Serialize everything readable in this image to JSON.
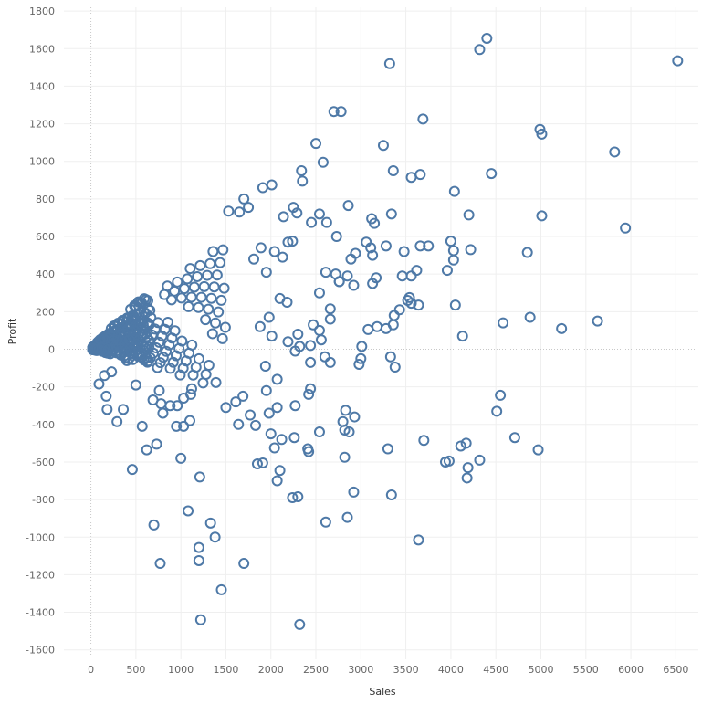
{
  "chart_data": {
    "type": "scatter",
    "title": "",
    "xlabel": "Sales",
    "ylabel": "Profit",
    "xlim": [
      -300,
      6750
    ],
    "ylim": [
      -1650,
      1820
    ],
    "x_ticks": [
      0,
      500,
      1000,
      1500,
      2000,
      2500,
      3000,
      3500,
      4000,
      4500,
      5000,
      5500,
      6000,
      6500
    ],
    "y_ticks": [
      -1600,
      -1400,
      -1200,
      -1000,
      -800,
      -600,
      -400,
      -200,
      0,
      200,
      400,
      600,
      800,
      1000,
      1200,
      1400,
      1600,
      1800
    ],
    "grid": true,
    "marker": "hollow-circle",
    "color": "#4e79a7",
    "series": [
      {
        "points": [
          [
            6520,
            1535
          ],
          [
            4400,
            1655
          ],
          [
            4320,
            1595
          ],
          [
            3320,
            1520
          ],
          [
            2700,
            1265
          ],
          [
            2780,
            1265
          ],
          [
            3690,
            1225
          ],
          [
            4990,
            1170
          ],
          [
            5010,
            1145
          ],
          [
            2500,
            1095
          ],
          [
            3250,
            1085
          ],
          [
            5820,
            1050
          ],
          [
            2580,
            995
          ],
          [
            3360,
            950
          ],
          [
            3560,
            915
          ],
          [
            3660,
            930
          ],
          [
            4450,
            935
          ],
          [
            2340,
            950
          ],
          [
            2350,
            895
          ],
          [
            1910,
            860
          ],
          [
            2010,
            875
          ],
          [
            1700,
            800
          ],
          [
            4040,
            840
          ],
          [
            2250,
            755
          ],
          [
            2140,
            705
          ],
          [
            2450,
            675
          ],
          [
            2540,
            720
          ],
          [
            2620,
            675
          ],
          [
            2860,
            765
          ],
          [
            2290,
            725
          ],
          [
            1530,
            735
          ],
          [
            1650,
            730
          ],
          [
            1750,
            755
          ],
          [
            3120,
            695
          ],
          [
            3150,
            670
          ],
          [
            3340,
            720
          ],
          [
            5010,
            710
          ],
          [
            4200,
            715
          ],
          [
            5940,
            645
          ],
          [
            4850,
            515
          ],
          [
            3660,
            550
          ],
          [
            3750,
            550
          ],
          [
            3480,
            520
          ],
          [
            4000,
            575
          ],
          [
            4030,
            525
          ],
          [
            4030,
            475
          ],
          [
            3960,
            420
          ],
          [
            4220,
            530
          ],
          [
            3060,
            570
          ],
          [
            3110,
            540
          ],
          [
            3280,
            550
          ],
          [
            3130,
            500
          ],
          [
            2940,
            510
          ],
          [
            2890,
            480
          ],
          [
            2730,
            600
          ],
          [
            2850,
            390
          ],
          [
            2760,
            360
          ],
          [
            2920,
            340
          ],
          [
            2540,
            300
          ],
          [
            2610,
            410
          ],
          [
            2720,
            400
          ],
          [
            3170,
            380
          ],
          [
            3130,
            350
          ],
          [
            3460,
            390
          ],
          [
            3560,
            390
          ],
          [
            3620,
            420
          ],
          [
            3520,
            260
          ],
          [
            3540,
            275
          ],
          [
            3430,
            210
          ],
          [
            3370,
            180
          ],
          [
            3360,
            130
          ],
          [
            3280,
            110
          ],
          [
            3180,
            120
          ],
          [
            3080,
            105
          ],
          [
            3560,
            245
          ],
          [
            3640,
            235
          ],
          [
            4050,
            235
          ],
          [
            4130,
            70
          ],
          [
            4580,
            140
          ],
          [
            4880,
            170
          ],
          [
            5230,
            110
          ],
          [
            5630,
            150
          ],
          [
            2470,
            130
          ],
          [
            2540,
            100
          ],
          [
            2660,
            160
          ],
          [
            2560,
            50
          ],
          [
            2440,
            20
          ],
          [
            2660,
            215
          ],
          [
            2760,
            360
          ],
          [
            2320,
            15
          ],
          [
            2190,
            570
          ],
          [
            2240,
            575
          ],
          [
            2040,
            520
          ],
          [
            2130,
            490
          ],
          [
            1890,
            540
          ],
          [
            1810,
            480
          ],
          [
            1950,
            410
          ],
          [
            2100,
            270
          ],
          [
            2180,
            250
          ],
          [
            1980,
            170
          ],
          [
            1880,
            120
          ],
          [
            2010,
            70
          ],
          [
            2190,
            40
          ],
          [
            2270,
            -10
          ],
          [
            2300,
            80
          ],
          [
            1940,
            -90
          ],
          [
            2070,
            -160
          ],
          [
            2440,
            -70
          ],
          [
            2600,
            -40
          ],
          [
            2660,
            -70
          ],
          [
            2980,
            -80
          ],
          [
            3000,
            -50
          ],
          [
            3010,
            15
          ],
          [
            3330,
            -40
          ],
          [
            3380,
            -95
          ],
          [
            2440,
            -210
          ],
          [
            2420,
            -240
          ],
          [
            2270,
            -300
          ],
          [
            2070,
            -310
          ],
          [
            1980,
            -340
          ],
          [
            2000,
            -450
          ],
          [
            2260,
            -470
          ],
          [
            2540,
            -440
          ],
          [
            2410,
            -530
          ],
          [
            2420,
            -545
          ],
          [
            2040,
            -525
          ],
          [
            2120,
            -480
          ],
          [
            1910,
            -605
          ],
          [
            2100,
            -645
          ],
          [
            2070,
            -700
          ],
          [
            2240,
            -790
          ],
          [
            2300,
            -785
          ],
          [
            2610,
            -920
          ],
          [
            2850,
            -895
          ],
          [
            2920,
            -760
          ],
          [
            2820,
            -575
          ],
          [
            2820,
            -430
          ],
          [
            2870,
            -440
          ],
          [
            2800,
            -385
          ],
          [
            2930,
            -360
          ],
          [
            2830,
            -325
          ],
          [
            3300,
            -530
          ],
          [
            3340,
            -775
          ],
          [
            3640,
            -1015
          ],
          [
            3700,
            -485
          ],
          [
            3940,
            -600
          ],
          [
            3980,
            -595
          ],
          [
            4110,
            -515
          ],
          [
            4170,
            -500
          ],
          [
            4190,
            -630
          ],
          [
            4180,
            -685
          ],
          [
            4320,
            -590
          ],
          [
            4510,
            -330
          ],
          [
            4550,
            -245
          ],
          [
            4710,
            -470
          ],
          [
            4970,
            -535
          ],
          [
            2320,
            -1465
          ],
          [
            1450,
            -1280
          ],
          [
            1220,
            -1440
          ],
          [
            1200,
            -1055
          ],
          [
            1200,
            -1125
          ],
          [
            1380,
            -1000
          ],
          [
            1700,
            -1140
          ],
          [
            1080,
            -860
          ],
          [
            1330,
            -925
          ],
          [
            700,
            -935
          ],
          [
            770,
            -1140
          ],
          [
            1210,
            -680
          ],
          [
            1000,
            -580
          ],
          [
            730,
            -505
          ],
          [
            620,
            -535
          ],
          [
            1830,
            -405
          ],
          [
            1640,
            -400
          ],
          [
            1500,
            -310
          ],
          [
            1610,
            -280
          ],
          [
            1850,
            -610
          ],
          [
            1770,
            -350
          ],
          [
            1690,
            -250
          ],
          [
            1950,
            -220
          ],
          [
            1030,
            -410
          ],
          [
            1100,
            -380
          ],
          [
            1030,
            -260
          ],
          [
            1110,
            -240
          ],
          [
            1120,
            -210
          ],
          [
            950,
            -410
          ],
          [
            960,
            -300
          ],
          [
            880,
            -300
          ],
          [
            800,
            -340
          ],
          [
            780,
            -290
          ],
          [
            760,
            -220
          ],
          [
            690,
            -270
          ],
          [
            570,
            -410
          ],
          [
            360,
            -320
          ],
          [
            290,
            -385
          ],
          [
            180,
            -320
          ],
          [
            170,
            -250
          ],
          [
            460,
            -640
          ],
          [
            500,
            -190
          ],
          [
            150,
            -140
          ],
          [
            230,
            -120
          ],
          [
            90,
            -185
          ]
        ]
      }
    ]
  }
}
